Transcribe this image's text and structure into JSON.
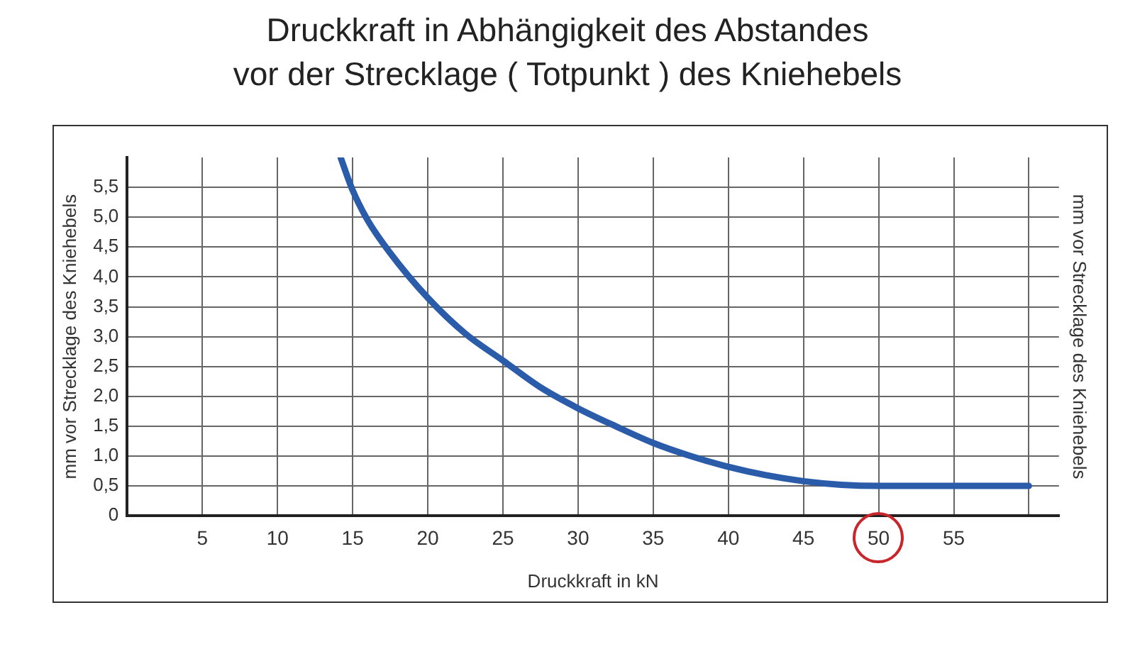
{
  "chart_data": {
    "type": "line",
    "title": "Druckkraft in Abhängigkeit des Abstandes\nvor der Strecklage ( Totpunkt ) des Kniehebels",
    "xlabel": "Druckkraft in kN",
    "ylabel": "mm vor Strecklage des Kniehebels",
    "y2label": "mm vor Strecklage des Kniehebels",
    "x": [
      14.2,
      15,
      16,
      17.5,
      20,
      22.5,
      25,
      27.5,
      30,
      32.5,
      35,
      37.5,
      40,
      42.5,
      45,
      47.5,
      50,
      55,
      60
    ],
    "series": [
      {
        "color": "#2a5caa",
        "values": [
          6.0,
          5.45,
          4.95,
          4.4,
          3.65,
          3.05,
          2.6,
          2.15,
          1.8,
          1.5,
          1.22,
          1.0,
          0.82,
          0.68,
          0.58,
          0.52,
          0.5,
          0.5,
          0.5
        ]
      }
    ],
    "xlim": [
      0,
      62
    ],
    "xticks": [
      5,
      10,
      15,
      20,
      25,
      30,
      35,
      40,
      45,
      50,
      55,
      {
        "value": 60,
        "label": null
      }
    ],
    "ylim": [
      0,
      6
    ],
    "yticks": [
      0,
      {
        "value": 0.5,
        "label": "0,5"
      },
      {
        "value": 1,
        "label": "1,0"
      },
      {
        "value": 1.5,
        "label": "1,5"
      },
      {
        "value": 2,
        "label": "2,0"
      },
      {
        "value": 2.5,
        "label": "2,5"
      },
      {
        "value": 3,
        "label": "3,0"
      },
      {
        "value": 3.5,
        "label": "3,5"
      },
      {
        "value": 4,
        "label": "4,0"
      },
      {
        "value": 4.5,
        "label": "4,5"
      },
      {
        "value": 5,
        "label": "5,0"
      },
      {
        "value": 5.5,
        "label": "5,5"
      }
    ],
    "grid": true,
    "legend": false,
    "marker": "none",
    "line_style": "solid"
  }
}
